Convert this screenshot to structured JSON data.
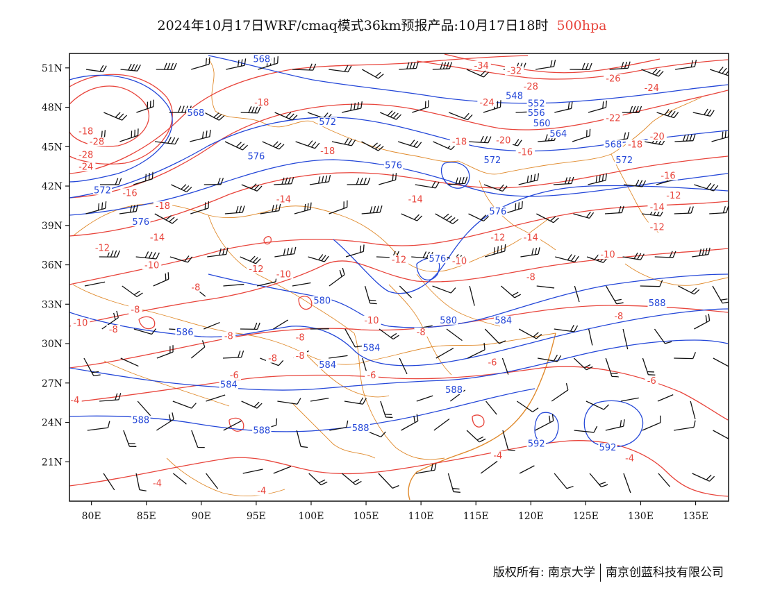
{
  "title": {
    "main": "2024年10月17日WRF/cmaq模式36km预报产品:10月17日18时",
    "level": "500hpa"
  },
  "copyright": {
    "left": "版权所有: 南京大学",
    "right": "南京创蓝科技有限公司"
  },
  "colors": {
    "temperature": "#e8453c",
    "height": "#2447d8",
    "border": "#e08a2c",
    "wind": "#111111"
  },
  "axes": {
    "lon_ticks": [
      "80E",
      "85E",
      "90E",
      "95E",
      "100E",
      "105E",
      "110E",
      "115E",
      "120E",
      "125E",
      "130E",
      "135E"
    ],
    "lat_ticks": [
      "51N",
      "48N",
      "45N",
      "42N",
      "39N",
      "36N",
      "33N",
      "30N",
      "27N",
      "24N",
      "21N"
    ]
  },
  "temperature_labels": [
    {
      "value": "-34",
      "lon": 115.5,
      "lat": 51.0
    },
    {
      "value": "-32",
      "lon": 118.5,
      "lat": 50.6
    },
    {
      "value": "-28",
      "lon": 120.0,
      "lat": 49.4
    },
    {
      "value": "-26",
      "lon": 127.5,
      "lat": 50.0
    },
    {
      "value": "-24",
      "lon": 131.0,
      "lat": 49.3
    },
    {
      "value": "-24",
      "lon": 116.0,
      "lat": 48.2
    },
    {
      "value": "-22",
      "lon": 127.5,
      "lat": 47.0
    },
    {
      "value": "-20",
      "lon": 131.5,
      "lat": 45.6
    },
    {
      "value": "-20",
      "lon": 117.5,
      "lat": 45.3
    },
    {
      "value": "-18",
      "lon": 95.5,
      "lat": 48.2
    },
    {
      "value": "-18",
      "lon": 113.5,
      "lat": 45.2
    },
    {
      "value": "-18",
      "lon": 129.5,
      "lat": 45.0
    },
    {
      "value": "-18",
      "lon": 101.5,
      "lat": 44.5
    },
    {
      "value": "-16",
      "lon": 119.5,
      "lat": 44.4
    },
    {
      "value": "-16",
      "lon": 132.5,
      "lat": 42.6
    },
    {
      "value": "-14",
      "lon": 97.5,
      "lat": 40.8
    },
    {
      "value": "-14",
      "lon": 109.5,
      "lat": 40.8
    },
    {
      "value": "-14",
      "lon": 131.5,
      "lat": 40.2
    },
    {
      "value": "-14",
      "lon": 86.0,
      "lat": 37.9
    },
    {
      "value": "-14",
      "lon": 120.0,
      "lat": 37.9
    },
    {
      "value": "-12",
      "lon": 131.5,
      "lat": 38.7
    },
    {
      "value": "-12",
      "lon": 81.0,
      "lat": 37.1
    },
    {
      "value": "-12",
      "lon": 117.0,
      "lat": 37.9
    },
    {
      "value": "-12",
      "lon": 108.0,
      "lat": 36.2
    },
    {
      "value": "-12",
      "lon": 95.0,
      "lat": 35.5
    },
    {
      "value": "-10",
      "lon": 97.5,
      "lat": 35.1
    },
    {
      "value": "-10",
      "lon": 113.5,
      "lat": 36.1
    },
    {
      "value": "-10",
      "lon": 127.0,
      "lat": 36.6
    },
    {
      "value": "-10",
      "lon": 85.5,
      "lat": 35.8
    },
    {
      "value": "-10",
      "lon": 79.0,
      "lat": 31.4
    },
    {
      "value": "-10",
      "lon": 105.5,
      "lat": 31.6
    },
    {
      "value": "-8",
      "lon": 120.0,
      "lat": 34.9
    },
    {
      "value": "-8",
      "lon": 89.5,
      "lat": 34.1
    },
    {
      "value": "-8",
      "lon": 128.0,
      "lat": 31.9
    },
    {
      "value": "-8",
      "lon": 84.0,
      "lat": 32.4
    },
    {
      "value": "-8",
      "lon": 82.0,
      "lat": 30.9
    },
    {
      "value": "-8",
      "lon": 110.0,
      "lat": 30.7
    },
    {
      "value": "-8",
      "lon": 99.0,
      "lat": 30.3
    },
    {
      "value": "-8",
      "lon": 99.0,
      "lat": 28.9
    },
    {
      "value": "-8",
      "lon": 96.5,
      "lat": 28.7
    },
    {
      "value": "-8",
      "lon": 92.5,
      "lat": 30.4
    },
    {
      "value": "-6",
      "lon": 116.5,
      "lat": 28.4
    },
    {
      "value": "-6",
      "lon": 93.0,
      "lat": 27.4
    },
    {
      "value": "-6",
      "lon": 105.5,
      "lat": 27.4
    },
    {
      "value": "-6",
      "lon": 131.0,
      "lat": 27.0
    },
    {
      "value": "-4",
      "lon": 78.5,
      "lat": 25.5
    },
    {
      "value": "-4",
      "lon": 86.0,
      "lat": 19.2
    },
    {
      "value": "-4",
      "lon": 95.5,
      "lat": 18.6
    },
    {
      "value": "-4",
      "lon": 117.0,
      "lat": 21.3
    },
    {
      "value": "-4",
      "lon": 129.0,
      "lat": 21.1
    },
    {
      "value": "-28",
      "lon": 79.5,
      "lat": 44.2
    },
    {
      "value": "-28",
      "lon": 80.5,
      "lat": 45.2
    },
    {
      "value": "-24",
      "lon": 79.5,
      "lat": 43.3
    },
    {
      "value": "-16",
      "lon": 83.5,
      "lat": 41.3
    },
    {
      "value": "-18",
      "lon": 86.5,
      "lat": 40.3
    },
    {
      "value": "-12",
      "lon": 133.0,
      "lat": 41.1
    },
    {
      "value": "-18",
      "lon": 79.5,
      "lat": 46.0
    }
  ],
  "height_labels": [
    {
      "value": "568",
      "lon": 95.5,
      "lat": 51.5
    },
    {
      "value": "548",
      "lon": 118.5,
      "lat": 48.7
    },
    {
      "value": "552",
      "lon": 120.5,
      "lat": 48.1
    },
    {
      "value": "556",
      "lon": 120.5,
      "lat": 47.4
    },
    {
      "value": "560",
      "lon": 121.0,
      "lat": 46.6
    },
    {
      "value": "564",
      "lon": 122.5,
      "lat": 45.8
    },
    {
      "value": "568",
      "lon": 127.5,
      "lat": 45.0
    },
    {
      "value": "568",
      "lon": 89.5,
      "lat": 47.4
    },
    {
      "value": "572",
      "lon": 101.5,
      "lat": 46.7
    },
    {
      "value": "572",
      "lon": 116.5,
      "lat": 43.8
    },
    {
      "value": "572",
      "lon": 128.5,
      "lat": 43.8
    },
    {
      "value": "576",
      "lon": 95.0,
      "lat": 44.1
    },
    {
      "value": "576",
      "lon": 107.5,
      "lat": 43.4
    },
    {
      "value": "576",
      "lon": 117.0,
      "lat": 39.9
    },
    {
      "value": "576",
      "lon": 84.5,
      "lat": 39.1
    },
    {
      "value": "576",
      "lon": 111.5,
      "lat": 36.3
    },
    {
      "value": "572",
      "lon": 81.0,
      "lat": 41.5
    },
    {
      "value": "580",
      "lon": 101.0,
      "lat": 33.1
    },
    {
      "value": "580",
      "lon": 112.5,
      "lat": 31.6
    },
    {
      "value": "584",
      "lon": 117.5,
      "lat": 31.6
    },
    {
      "value": "584",
      "lon": 105.5,
      "lat": 29.5
    },
    {
      "value": "584",
      "lon": 101.5,
      "lat": 28.2
    },
    {
      "value": "584",
      "lon": 92.5,
      "lat": 26.7
    },
    {
      "value": "586",
      "lon": 88.5,
      "lat": 30.7
    },
    {
      "value": "588",
      "lon": 131.5,
      "lat": 32.9
    },
    {
      "value": "588",
      "lon": 113.0,
      "lat": 26.3
    },
    {
      "value": "588",
      "lon": 84.5,
      "lat": 24.0
    },
    {
      "value": "588",
      "lon": 95.5,
      "lat": 23.2
    },
    {
      "value": "588",
      "lon": 104.5,
      "lat": 23.4
    },
    {
      "value": "592",
      "lon": 120.5,
      "lat": 22.2
    },
    {
      "value": "592",
      "lon": 127.0,
      "lat": 21.9
    }
  ]
}
